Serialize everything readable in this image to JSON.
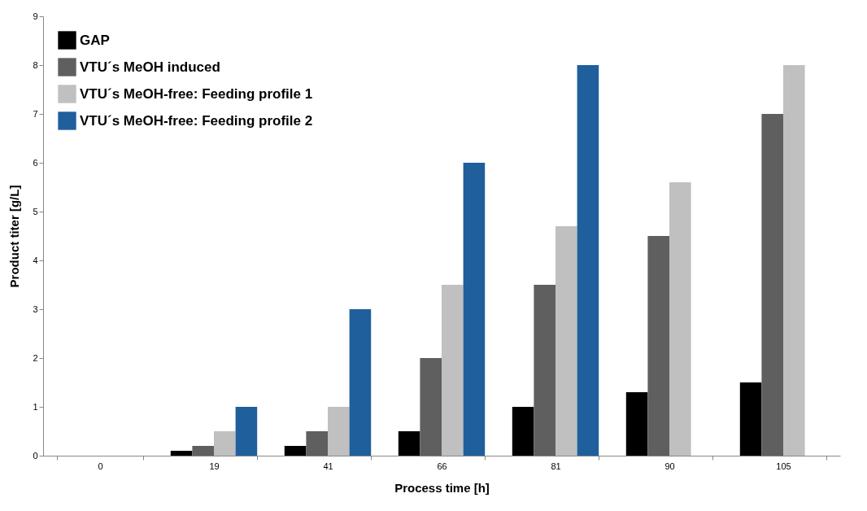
{
  "chart_data": {
    "type": "bar",
    "xlabel": "Process time [h]",
    "ylabel": "Product titer [g/L]",
    "categories": [
      "0",
      "19",
      "41",
      "66",
      "81",
      "90",
      "105"
    ],
    "series": [
      {
        "name": "GAP",
        "color": "#000000",
        "values": [
          0,
          0.1,
          0.2,
          0.5,
          1,
          1.3,
          1.5
        ]
      },
      {
        "name": "VTU´s MeOH induced",
        "color": "#5f5f5f",
        "values": [
          0,
          0.2,
          0.5,
          2,
          3.5,
          4.5,
          7
        ]
      },
      {
        "name": "VTU´s MeOH-free: Feeding profile 1",
        "color": "#c0c0c0",
        "values": [
          0,
          0.5,
          1,
          3.5,
          4.7,
          5.6,
          8
        ]
      },
      {
        "name": "VTU´s MeOH-free: Feeding profile 2",
        "color": "#1f5f9c",
        "values": [
          0,
          1,
          3,
          6,
          8,
          null,
          null
        ]
      }
    ],
    "ylim": [
      0,
      9
    ],
    "yticks": [
      0,
      1,
      2,
      3,
      4,
      5,
      6,
      7,
      8,
      9
    ],
    "grid": false,
    "legend": "top left"
  }
}
